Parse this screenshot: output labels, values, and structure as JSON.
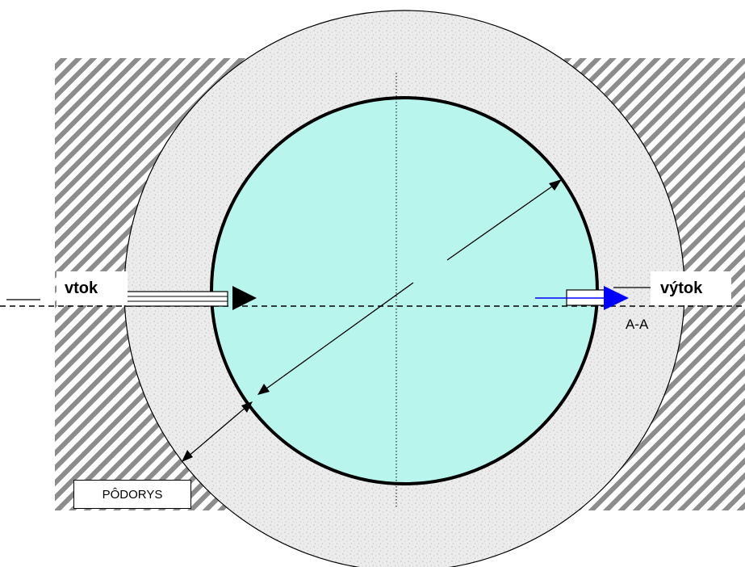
{
  "labels": {
    "inflow": "vtok",
    "outflow": "výtok",
    "section_mark": "A-A",
    "plan_view": "PÔDORYS"
  },
  "colors": {
    "water": "#b8f5ec",
    "concrete": "#e6e6e6",
    "soil_hatch": "#8c8c8c",
    "outflow_arrow": "#0000ff",
    "outline": "#000000"
  },
  "icons": {
    "inflow_arrow": "arrow-right-icon",
    "outflow_arrow": "arrow-right-icon"
  }
}
